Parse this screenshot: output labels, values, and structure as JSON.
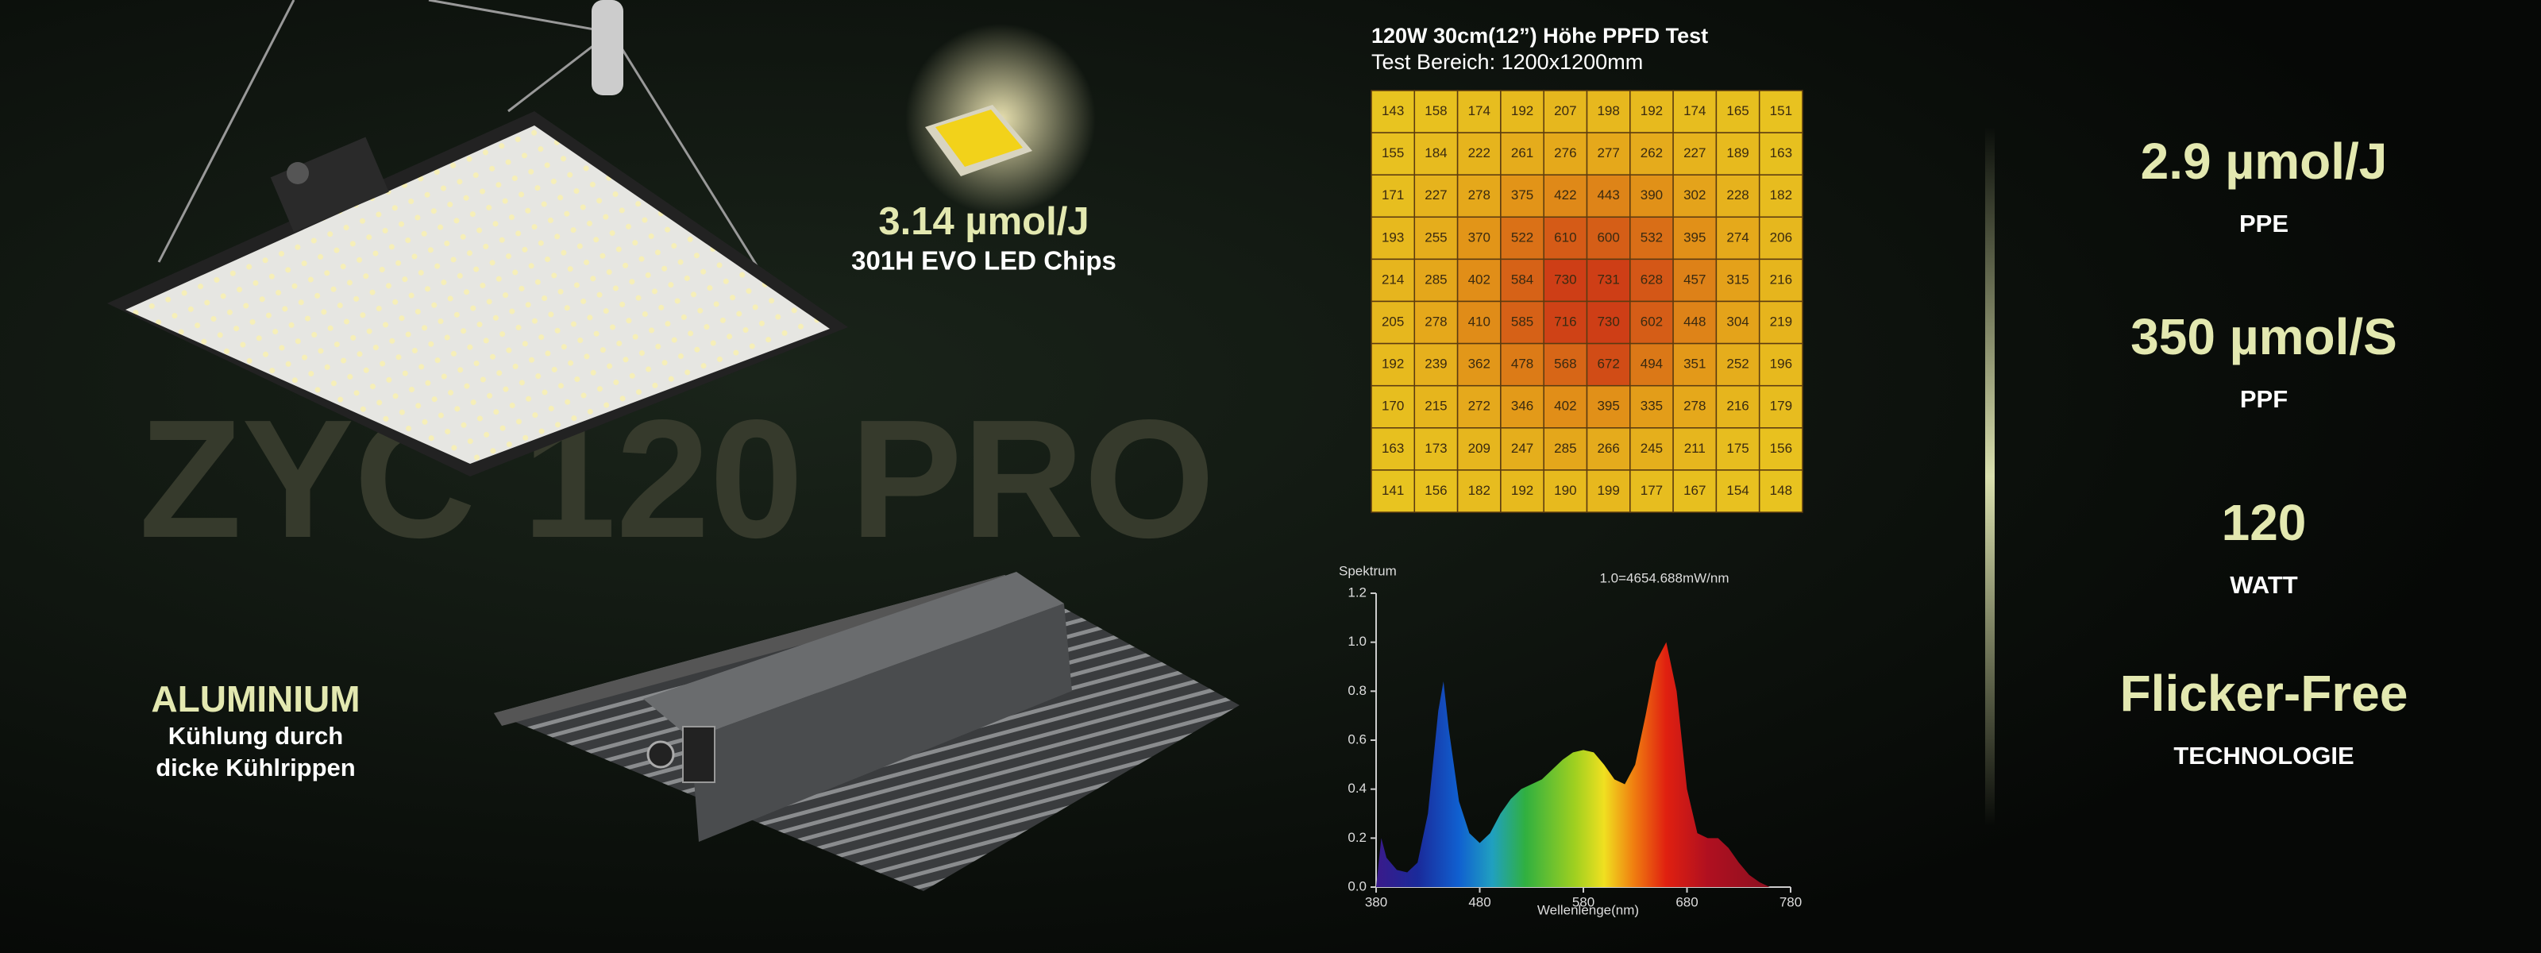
{
  "product": {
    "name": "ZYC 120 PRO"
  },
  "chip": {
    "efficiency": "3.14 µmol/J",
    "name": "301H EVO LED Chips"
  },
  "aluminium": {
    "title": "ALUMINIUM",
    "lines": [
      "Kühlung durch",
      "dicke Kühlrippen"
    ]
  },
  "ppfd": {
    "title": "120W 30cm(12”) Höhe PPFD Test",
    "subtitle": "Test Bereich: 1200x1200mm",
    "rows": [
      [
        143,
        158,
        174,
        192,
        207,
        198,
        192,
        174,
        165,
        151
      ],
      [
        155,
        184,
        222,
        261,
        276,
        277,
        262,
        227,
        189,
        163
      ],
      [
        171,
        227,
        278,
        375,
        422,
        443,
        390,
        302,
        228,
        182
      ],
      [
        193,
        255,
        370,
        522,
        610,
        600,
        532,
        395,
        274,
        206
      ],
      [
        214,
        285,
        402,
        584,
        730,
        731,
        628,
        457,
        315,
        216
      ],
      [
        205,
        278,
        410,
        585,
        716,
        730,
        602,
        448,
        304,
        219
      ],
      [
        192,
        239,
        362,
        478,
        568,
        672,
        494,
        351,
        252,
        196
      ],
      [
        170,
        215,
        272,
        346,
        402,
        395,
        335,
        278,
        216,
        179
      ],
      [
        163,
        173,
        209,
        247,
        285,
        266,
        245,
        211,
        175,
        156
      ],
      [
        141,
        156,
        182,
        192,
        190,
        199,
        177,
        167,
        154,
        148
      ]
    ]
  },
  "chart_data": {
    "type": "area",
    "y_label": "Spektrum",
    "x_label": "Wellenlenge(nm)",
    "annotation": "1.0=4654.688mW/nm",
    "x": [
      380,
      385,
      390,
      400,
      410,
      420,
      430,
      440,
      445,
      450,
      460,
      470,
      480,
      490,
      500,
      510,
      520,
      530,
      540,
      550,
      560,
      570,
      580,
      590,
      600,
      610,
      620,
      630,
      640,
      650,
      660,
      670,
      680,
      690,
      700,
      710,
      720,
      730,
      740,
      750,
      760,
      770,
      780
    ],
    "values": [
      0.0,
      0.2,
      0.12,
      0.07,
      0.06,
      0.1,
      0.3,
      0.72,
      0.84,
      0.65,
      0.35,
      0.22,
      0.18,
      0.22,
      0.3,
      0.36,
      0.4,
      0.42,
      0.44,
      0.48,
      0.52,
      0.55,
      0.56,
      0.55,
      0.5,
      0.44,
      0.42,
      0.5,
      0.7,
      0.92,
      1.0,
      0.8,
      0.4,
      0.22,
      0.2,
      0.2,
      0.16,
      0.1,
      0.05,
      0.02,
      0.0,
      0.0,
      0.0
    ],
    "xlim": [
      380,
      780
    ],
    "xticks": [
      380,
      480,
      580,
      680,
      780
    ],
    "ylim": [
      0,
      1.2
    ],
    "yticks": [
      {
        "value": 0,
        "label": "0.0"
      },
      0.2,
      0.4,
      0.6,
      0.8,
      {
        "value": 1,
        "label": "1.0"
      },
      1.2
    ]
  },
  "specs": [
    {
      "value": "2.9 µmol/J",
      "label": "PPE"
    },
    {
      "value": "350 µmol/S",
      "label": "PPF"
    },
    {
      "value": "120",
      "label": "WATT"
    },
    {
      "value": "Flicker-Free",
      "label": "TECHNOLOGIE"
    }
  ]
}
